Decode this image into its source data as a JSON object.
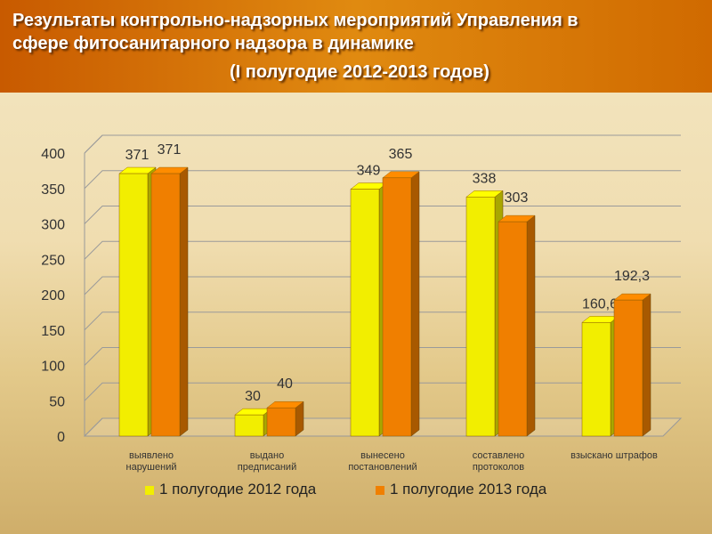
{
  "chart_data": {
    "type": "bar",
    "title": "Результаты контрольно-надзорных мероприятий Управления в\nсфере фитосанитарного надзора в динамике",
    "subtitle": "(I полугодие 2012-2013 годов)",
    "categories": [
      "выявлено\nнарушений",
      "выдано\nпредписаний",
      "вынесено\nпостановлений",
      "составлено\nпротоколов",
      "взыскано штрафов"
    ],
    "series": [
      {
        "name": "1 полугодие 2012 года",
        "color": "#f2ee00",
        "values": [
          371,
          30,
          349,
          338,
          160.6
        ],
        "value_labels": [
          "371",
          "30",
          "349",
          "338",
          "160,6"
        ]
      },
      {
        "name": "1 полугодие 2013 года",
        "color": "#f07f00",
        "values": [
          371,
          40,
          365,
          303,
          192.3
        ],
        "value_labels": [
          "371",
          "40",
          "365",
          "303",
          "192,3"
        ]
      }
    ],
    "ylim": [
      0,
      400
    ],
    "yticks": [
      0,
      50,
      100,
      150,
      200,
      250,
      300,
      350,
      400
    ],
    "grid": true,
    "legend": "bottom"
  }
}
